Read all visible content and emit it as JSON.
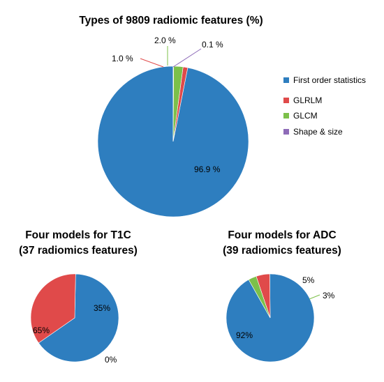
{
  "chart_data": [
    {
      "type": "pie",
      "title": "Types of 9809 radiomic features (%)",
      "categories": [
        "First order statistics",
        "GLRLM",
        "GLCM",
        "Shape & size"
      ],
      "values": [
        96.9,
        1.0,
        2.0,
        0.1
      ],
      "labels": [
        "96.9 %",
        "1.0 %",
        "2.0 %",
        "0.1 %"
      ],
      "colors": [
        "#2e7ebf",
        "#e04a4a",
        "#7cc04a",
        "#8e6bb8"
      ],
      "legend": "right"
    },
    {
      "type": "pie",
      "title_lines": [
        "Four models for T1C",
        "(37 radiomics features)"
      ],
      "categories": [
        "First order statistics",
        "GLRLM",
        "GLCM"
      ],
      "values": [
        65,
        35,
        0
      ],
      "labels": [
        "65%",
        "35%",
        "0%"
      ],
      "colors": [
        "#2e7ebf",
        "#e04a4a",
        "#7cc04a"
      ]
    },
    {
      "type": "pie",
      "title_lines": [
        "Four models for ADC",
        "(39 radiomics features)"
      ],
      "categories": [
        "First order statistics",
        "GLRLM",
        "GLCM"
      ],
      "values": [
        92,
        5,
        3
      ],
      "labels": [
        "92%",
        "5%",
        "3%"
      ],
      "colors": [
        "#2e7ebf",
        "#e04a4a",
        "#7cc04a"
      ]
    }
  ]
}
